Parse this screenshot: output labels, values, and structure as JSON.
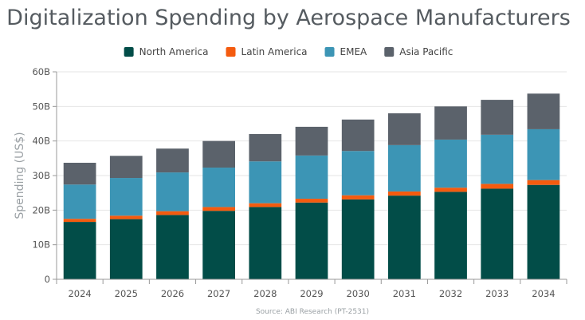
{
  "chart_data": {
    "type": "bar",
    "stacked": true,
    "title": "Digitalization Spending by Aerospace Manufacturers",
    "ylabel": "Spending (US$)",
    "xlabel": "",
    "source": "Source: ABI Research (PT-2531)",
    "categories": [
      "2024",
      "2025",
      "2026",
      "2027",
      "2028",
      "2029",
      "2030",
      "2031",
      "2032",
      "2033",
      "2034"
    ],
    "y_ticks": [
      "0",
      "10B",
      "20B",
      "30B",
      "40B",
      "50B",
      "60B"
    ],
    "ylim": [
      0,
      60
    ],
    "grid": true,
    "legend_position": "top",
    "series": [
      {
        "name": "North America",
        "color": "#024d48",
        "values": [
          16.6,
          17.4,
          18.6,
          19.8,
          20.9,
          22.2,
          23.1,
          24.2,
          25.3,
          26.2,
          27.3
        ]
      },
      {
        "name": "Latin America",
        "color": "#f45b0f",
        "values": [
          0.9,
          1.0,
          1.1,
          1.1,
          1.1,
          1.1,
          1.2,
          1.2,
          1.2,
          1.4,
          1.4
        ]
      },
      {
        "name": "EMEA",
        "color": "#3c95b5",
        "values": [
          9.9,
          10.9,
          11.2,
          11.4,
          12.1,
          12.5,
          12.8,
          13.4,
          13.9,
          14.2,
          14.7
        ]
      },
      {
        "name": "Asia Pacific",
        "color": "#5b626b",
        "values": [
          6.3,
          6.4,
          6.9,
          7.7,
          7.9,
          8.3,
          9.1,
          9.2,
          9.6,
          10.1,
          10.3
        ]
      }
    ]
  }
}
